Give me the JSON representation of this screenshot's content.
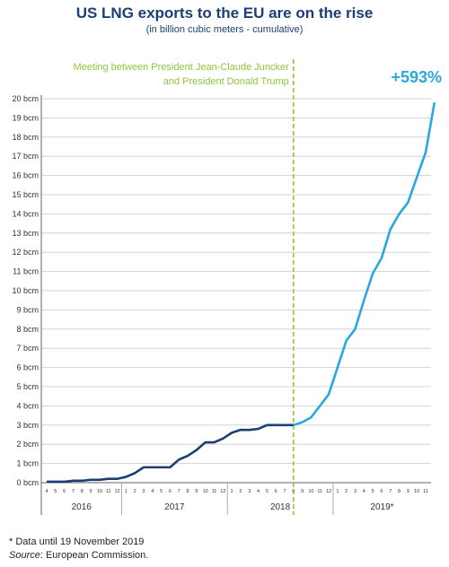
{
  "title": "US LNG exports to the EU are on the rise",
  "subtitle": "(in billion cubic meters - cumulative)",
  "annotation": {
    "line1": "Meeting between President Jean-Claude Juncker",
    "line2": "and President Donald Trump",
    "color": "#8dc63f"
  },
  "increase_label": "+593%",
  "colors": {
    "before": "#1b3f74",
    "after": "#29a8e0",
    "accent": "#29a8e0"
  },
  "chart_data": {
    "type": "line",
    "ylim": [
      0,
      20
    ],
    "y_ticks": [
      "0 bcm",
      "1 bcm",
      "2 bcm",
      "3 bcm",
      "4 bcm",
      "5 bcm",
      "6 bcm",
      "7 bcm",
      "8 bcm",
      "9 bcm",
      "10 bcm",
      "11 bcm",
      "12 bcm",
      "13 bcm",
      "14 bcm",
      "15 bcm",
      "16 bcm",
      "17 bcm",
      "18 bcm",
      "19 bcm",
      "20 bcm"
    ],
    "month_labels": [
      "4",
      "5",
      "6",
      "7",
      "8",
      "9",
      "10",
      "11",
      "12",
      "1",
      "2",
      "3",
      "4",
      "5",
      "6",
      "7",
      "8",
      "9",
      "10",
      "11",
      "12",
      "1",
      "2",
      "3",
      "4",
      "5",
      "6",
      "7",
      "8",
      "9",
      "10",
      "11",
      "12",
      "1",
      "2",
      "3",
      "4",
      "5",
      "6",
      "7",
      "8",
      "9",
      "10",
      "11"
    ],
    "year_labels": [
      "2016",
      "2017",
      "2018",
      "2019*"
    ],
    "series": [
      {
        "segment": "before",
        "values": [
          0.05,
          0.05,
          0.05,
          0.1,
          0.1,
          0.15,
          0.15,
          0.2,
          0.2,
          0.3,
          0.5,
          0.8,
          0.8,
          0.8,
          0.8,
          1.2,
          1.4,
          1.7,
          2.1,
          2.1,
          2.3,
          2.6,
          2.75,
          2.75,
          2.8,
          3.0,
          3.0,
          3.0,
          3.0
        ]
      },
      {
        "segment": "after",
        "values": [
          3.0,
          3.15,
          3.4,
          4.0,
          4.6,
          6.0,
          7.4,
          8.0,
          9.5,
          10.9,
          11.7,
          13.2,
          14.0,
          14.6,
          15.9,
          17.2,
          19.8
        ]
      }
    ]
  },
  "notes": {
    "footnote": "* Data until 19 November 2019",
    "source_label": "Source",
    "source_text": ": European Commission."
  }
}
